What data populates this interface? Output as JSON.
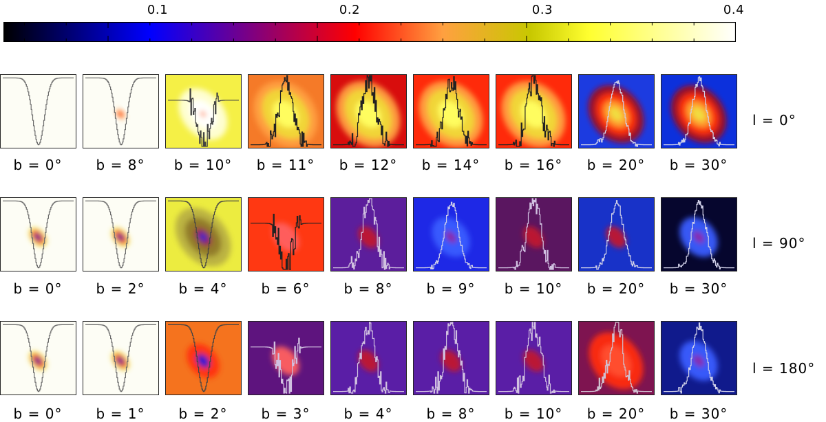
{
  "colorbar": {
    "range": [
      0.05,
      0.4
    ],
    "tick_labels": [
      "0.1",
      "0.2",
      "0.3",
      "0.4"
    ],
    "colors": [
      "#000000",
      "#0000ff",
      "#ff0000",
      "#ffa040",
      "#c8c800",
      "#ffff30",
      "#ffffff"
    ]
  },
  "chart_data": {
    "type": "heatmap",
    "title": "",
    "colorbar_range": [
      0.05,
      0.4
    ],
    "colorbar_ticks": [
      0.1,
      0.2,
      0.3,
      0.4
    ],
    "rows": [
      {
        "label": "l = 0°",
        "panels": [
          {
            "caption": "b = 0°",
            "bg": "#fdfdf5",
            "blob": null,
            "curve": "dip-smooth",
            "line": "#6a6a6a"
          },
          {
            "caption": "b = 8°",
            "bg": "#fdfdf5",
            "blob": "small",
            "curve": "dip-noisy",
            "line": "#6a6a6a"
          },
          {
            "caption": "b = 10°",
            "bg": "#f5f046",
            "blob": "white",
            "curve": "dip-spiky",
            "line": "#444444"
          },
          {
            "caption": "b = 11°",
            "bg": "#f57a28",
            "blob": "yellow",
            "curve": "peak-spiky",
            "line": "#222222"
          },
          {
            "caption": "b = 12°",
            "bg": "#d80d0d",
            "blob": "yellow",
            "curve": "peak-spiky",
            "line": "#222222"
          },
          {
            "caption": "b = 14°",
            "bg": "#ff2a0a",
            "blob": "yellow",
            "curve": "peak-spiky",
            "line": "#222222"
          },
          {
            "caption": "b = 16°",
            "bg": "#ff2a0a",
            "blob": "yellow",
            "curve": "peak-spiky",
            "line": "#222222"
          },
          {
            "caption": "b = 20°",
            "bg": "#1c3be0",
            "blob": "hot",
            "curve": "peak",
            "line": "#d0d0e8"
          },
          {
            "caption": "b = 30°",
            "bg": "#0c30dc",
            "blob": "hot",
            "curve": "peak",
            "line": "#d0d0e8"
          }
        ]
      },
      {
        "label": "l = 90°",
        "panels": [
          {
            "caption": "b = 0°",
            "bg": "#fdfdf5",
            "blob": "ring",
            "curve": "dip-smooth",
            "line": "#6a6a6a"
          },
          {
            "caption": "b = 2°",
            "bg": "#fdfdf5",
            "blob": "ring",
            "curve": "dip-smooth",
            "line": "#6a6a6a"
          },
          {
            "caption": "b = 4°",
            "bg": "#ecec40",
            "blob": "olive",
            "curve": "dip-smooth",
            "line": "#444444"
          },
          {
            "caption": "b = 6°",
            "bg": "#ff3812",
            "blob": "faint",
            "curve": "dip-spiky",
            "line": "#222222"
          },
          {
            "caption": "b = 8°",
            "bg": "#5c1e9c",
            "blob": "red",
            "curve": "peak-spiky",
            "line": "#d0c0e0"
          },
          {
            "caption": "b = 9°",
            "bg": "#1e28e6",
            "blob": "blue",
            "curve": "peak",
            "line": "#d0d0e8"
          },
          {
            "caption": "b = 10°",
            "bg": "#5a1660",
            "blob": "red",
            "curve": "peak-spiky",
            "line": "#d0c0e0"
          },
          {
            "caption": "b = 20°",
            "bg": "#1832c8",
            "blob": "red",
            "curve": "peak",
            "line": "#d0d0e8"
          },
          {
            "caption": "b = 30°",
            "bg": "#06062e",
            "blob": "blue",
            "curve": "peak",
            "line": "#d0d0e8"
          }
        ]
      },
      {
        "label": "l = 180°",
        "panels": [
          {
            "caption": "b = 0°",
            "bg": "#fdfdf5",
            "blob": "ring",
            "curve": "dip-smooth",
            "line": "#6a6a6a"
          },
          {
            "caption": "b = 1°",
            "bg": "#fdfdf5",
            "blob": "ring",
            "curve": "dip-smooth",
            "line": "#6a6a6a"
          },
          {
            "caption": "b = 2°",
            "bg": "#f5731e",
            "blob": "bluecore",
            "curve": "dip-smooth",
            "line": "#444444"
          },
          {
            "caption": "b = 3°",
            "bg": "#5e147e",
            "blob": "faint",
            "curve": "dip-spiky",
            "line": "#d0c0e0"
          },
          {
            "caption": "b = 4°",
            "bg": "#5a1ea6",
            "blob": "red",
            "curve": "peak-spiky",
            "line": "#d0c0e0"
          },
          {
            "caption": "b = 8°",
            "bg": "#5a1ea6",
            "blob": "red",
            "curve": "peak-spiky",
            "line": "#d0c0e0"
          },
          {
            "caption": "b = 10°",
            "bg": "#5a1ea6",
            "blob": "red",
            "curve": "peak-spiky",
            "line": "#d0c0e0"
          },
          {
            "caption": "b = 20°",
            "bg": "#7e1450",
            "blob": "redbig",
            "curve": "peak-spiky",
            "line": "#d0c0d0"
          },
          {
            "caption": "b = 30°",
            "bg": "#101a8c",
            "blob": "blue",
            "curve": "peak",
            "line": "#d0d0e8"
          }
        ]
      }
    ]
  }
}
